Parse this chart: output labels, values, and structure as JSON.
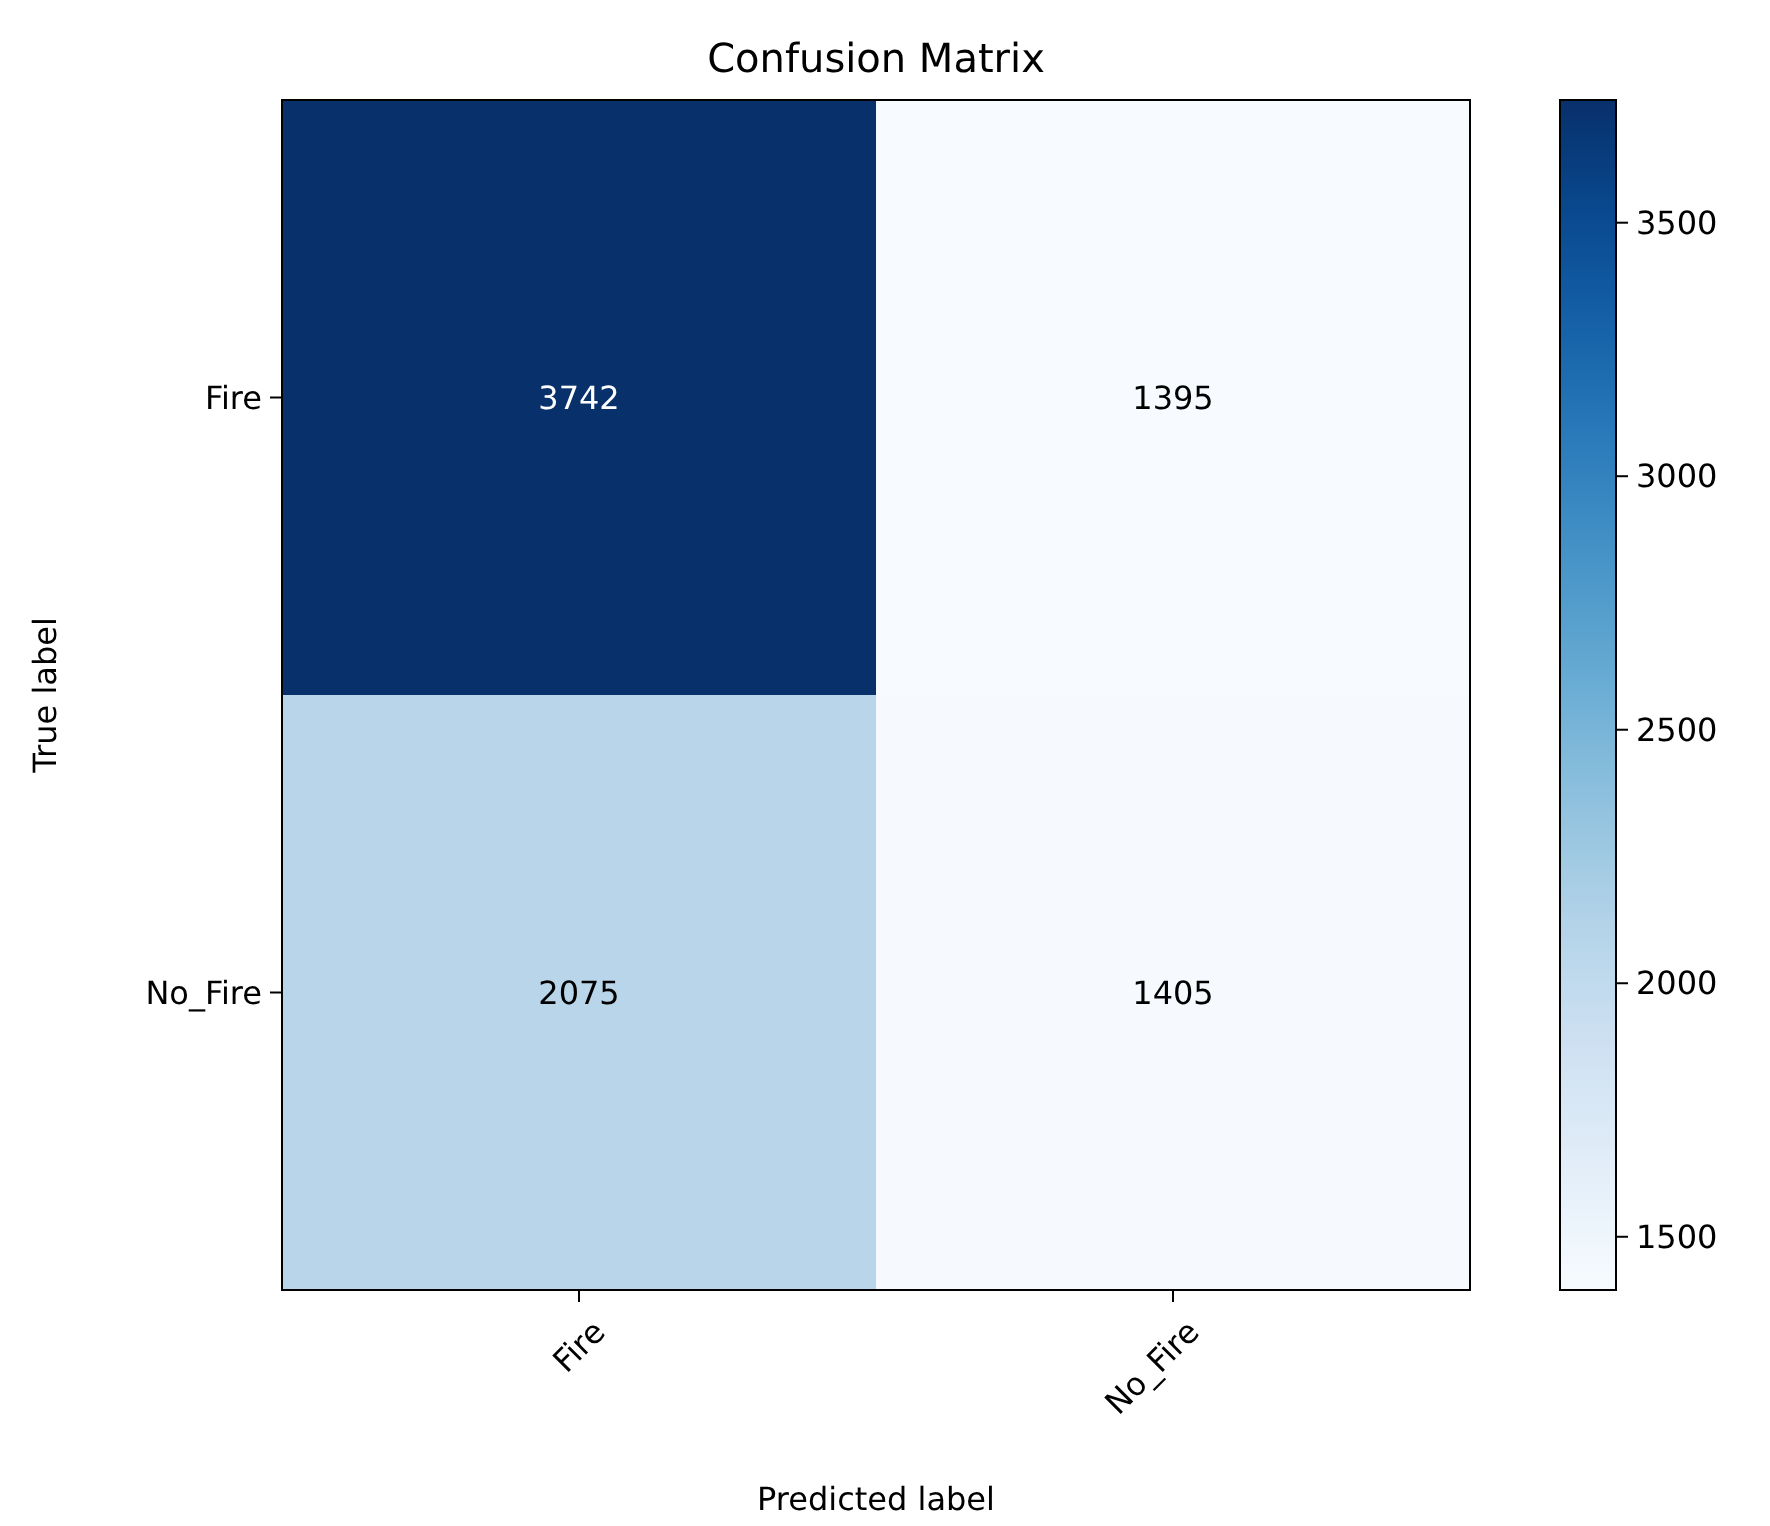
{
  "chart_data": {
    "type": "heatmap",
    "title": "Confusion Matrix",
    "xlabel": "Predicted label",
    "ylabel": "True label",
    "categories": [
      "Fire",
      "No_Fire"
    ],
    "y_categories": [
      "Fire",
      "No_Fire"
    ],
    "cells": [
      [
        3742,
        1395
      ],
      [
        2075,
        1405
      ]
    ],
    "clim": [
      1395,
      3742
    ],
    "cticks": [
      1500,
      2000,
      2500,
      3000,
      3500
    ],
    "data_labels": true
  }
}
